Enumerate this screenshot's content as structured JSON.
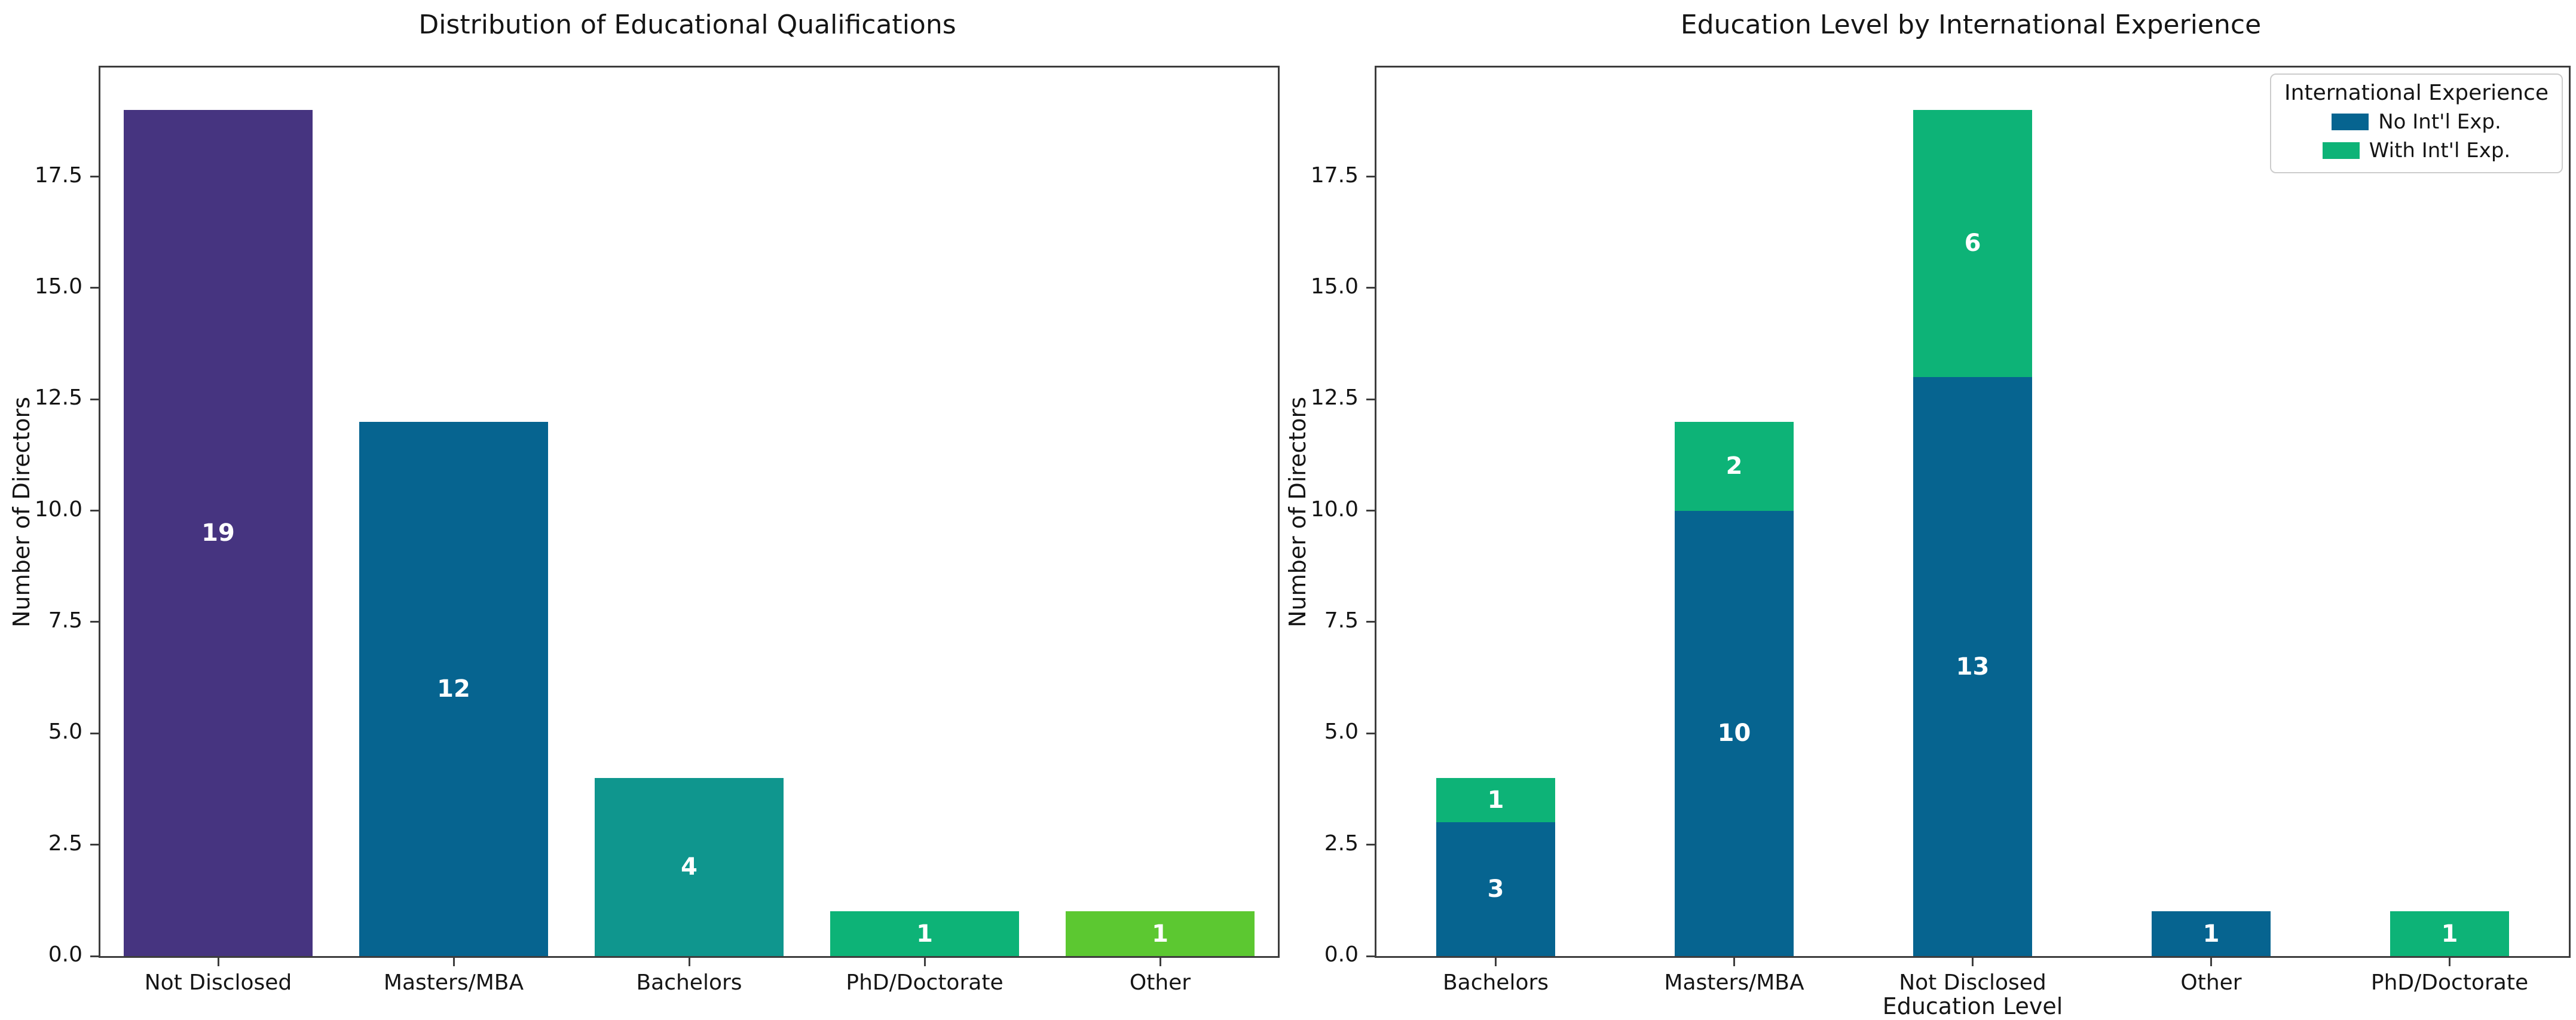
{
  "figure": {
    "background": "#ffffff",
    "axis_color": "#3d3d3d",
    "text_color": "#151515",
    "bar_label_color": "#ffffff"
  },
  "chart_data": [
    {
      "type": "bar",
      "title": "Distribution of Educational Qualifications",
      "xlabel": "",
      "ylabel": "Number of Directors",
      "categories": [
        "Not Disclosed",
        "Masters/MBA",
        "Bachelors",
        "PhD/Doctorate",
        "Other"
      ],
      "values": [
        19,
        12,
        4,
        1,
        1
      ],
      "bar_labels": [
        "19",
        "12",
        "4",
        "1",
        "1"
      ],
      "bar_colors": [
        "#463480",
        "#066490",
        "#0f968e",
        "#0db377",
        "#5cc831"
      ],
      "ylim": [
        0,
        19.95
      ],
      "yticks": [
        0,
        2.5,
        5,
        7.5,
        10,
        12.5,
        15,
        17.5
      ],
      "ytick_labels": [
        "0.0",
        "2.5",
        "5.0",
        "7.5",
        "10.0",
        "12.5",
        "15.0",
        "17.5"
      ],
      "grid": false,
      "legend_position": "none",
      "bar_width_fraction": 0.8
    },
    {
      "type": "stacked-bar",
      "title": "Education Level by International Experience",
      "xlabel": "Education Level",
      "ylabel": "Number of Directors",
      "categories": [
        "Bachelors",
        "Masters/MBA",
        "Not Disclosed",
        "Other",
        "PhD/Doctorate"
      ],
      "series": [
        {
          "name": "No Int'l Exp.",
          "color": "#066490",
          "values": [
            3,
            10,
            13,
            1,
            0
          ],
          "labels": [
            "3",
            "10",
            "13",
            "1",
            ""
          ]
        },
        {
          "name": "With Int'l Exp.",
          "color": "#0db377",
          "values": [
            1,
            2,
            6,
            0,
            1
          ],
          "labels": [
            "1",
            "2",
            "6",
            "",
            "1"
          ]
        }
      ],
      "ylim": [
        0,
        19.95
      ],
      "yticks": [
        0,
        2.5,
        5,
        7.5,
        10,
        12.5,
        15,
        17.5
      ],
      "ytick_labels": [
        "0.0",
        "2.5",
        "5.0",
        "7.5",
        "10.0",
        "12.5",
        "15.0",
        "17.5"
      ],
      "grid": false,
      "legend": {
        "title": "International Experience",
        "position": "upper right"
      },
      "bar_width_fraction": 0.5
    }
  ]
}
